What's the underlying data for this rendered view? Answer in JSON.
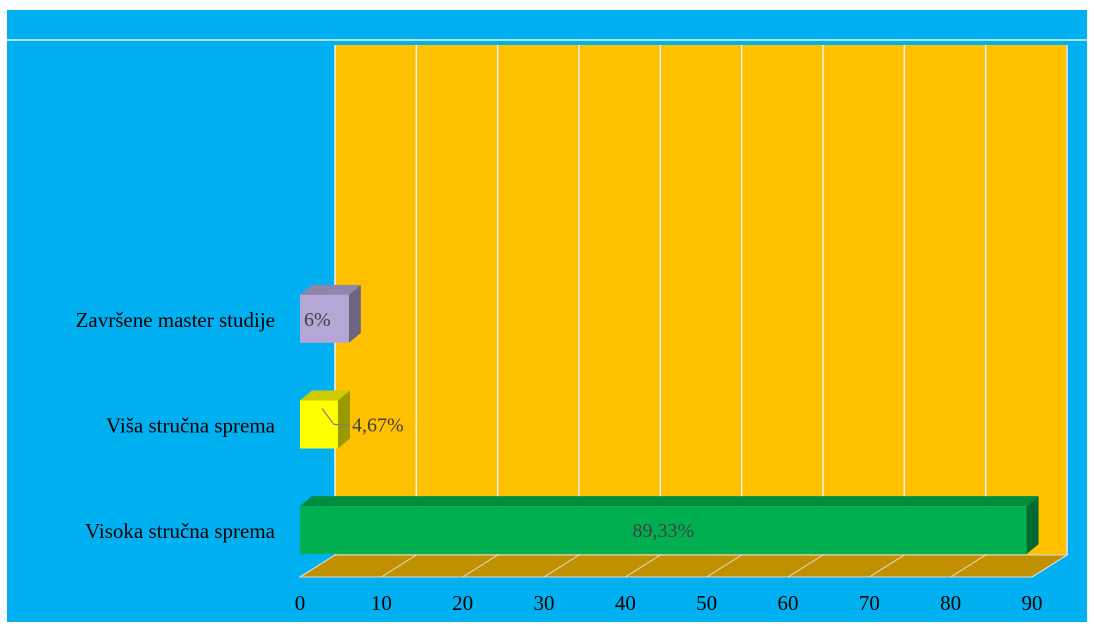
{
  "chart_data": {
    "type": "bar",
    "orientation": "horizontal",
    "title": "",
    "xlabel": "",
    "ylabel": "",
    "categories": [
      "Visoka stručna sprema",
      "Viša stručna sprema",
      "Završene master studije"
    ],
    "values": [
      89.33,
      4.67,
      6
    ],
    "data_labels": [
      "89,33%",
      "4,67%",
      "6%"
    ],
    "bar_colors": [
      "#00b050",
      "#ffff00",
      "#b4a7d6"
    ],
    "x_ticks": [
      "0",
      "10",
      "20",
      "30",
      "40",
      "50",
      "60",
      "70",
      "80",
      "90"
    ],
    "xlim": [
      0,
      90
    ],
    "grid": true,
    "legend": "none",
    "colors": {
      "background": "#00b0f0",
      "plot_wall": "#ffc000",
      "floor": "#c09000",
      "gridline": "#f2f2f2"
    }
  }
}
